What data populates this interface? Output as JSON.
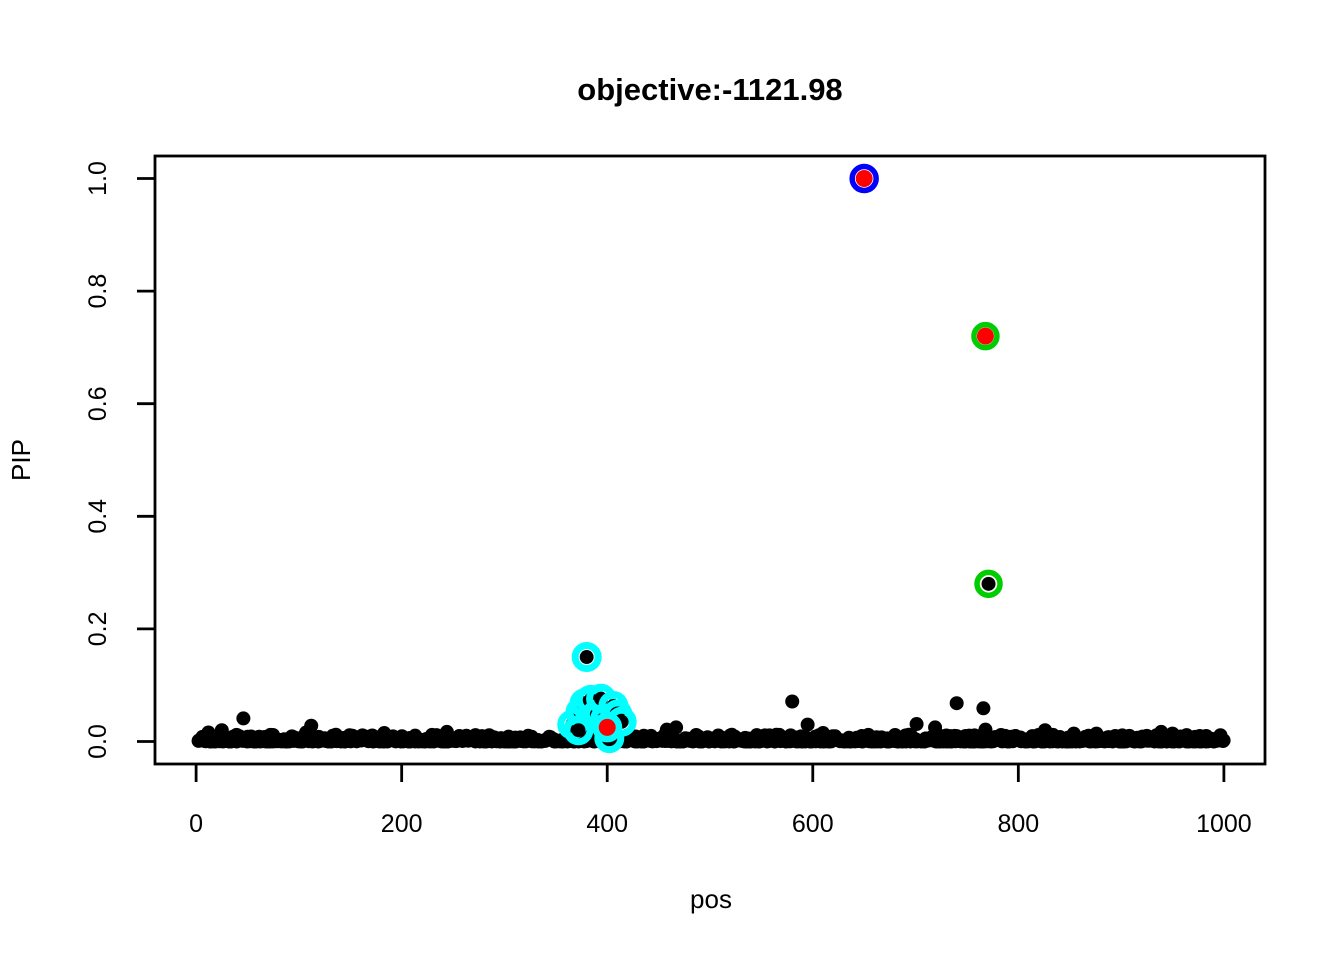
{
  "window": {
    "background": "#ffffff"
  },
  "chart_data": {
    "type": "scatter",
    "title": "objective:-1121.98",
    "xlabel": "pos",
    "ylabel": "PIP",
    "xlim": [
      0,
      1000
    ],
    "ylim": [
      0,
      1
    ],
    "x_ticks": [
      0,
      200,
      400,
      600,
      800,
      1000
    ],
    "y_ticks": [
      "0.0",
      "0.2",
      "0.4",
      "0.6",
      "0.8",
      "1.0"
    ],
    "axis_padding_frac": 0.04,
    "grid": false,
    "legend": "none",
    "colors": {
      "point": "#000000",
      "true_effect_dot": "#FF0000",
      "ring_blue": "#0000FF",
      "ring_green": "#00CD00",
      "ring_cyan": "#00FFFF",
      "box": "#000000"
    },
    "credible_sets": [
      {
        "name": "cs-blue",
        "ring": "ring_blue",
        "ring_radius": 12,
        "ring_stroke": 5.5,
        "points": [
          {
            "pos": 650,
            "pip": 1.0,
            "dot": "red"
          }
        ]
      },
      {
        "name": "cs-green",
        "ring": "ring_green",
        "ring_radius": 11.5,
        "ring_stroke": 5.5,
        "points": [
          {
            "pos": 768,
            "pip": 0.72,
            "dot": "red"
          },
          {
            "pos": 771,
            "pip": 0.28,
            "dot": "black"
          }
        ]
      },
      {
        "name": "cs-cyan",
        "ring": "ring_cyan",
        "ring_radius": 11.5,
        "ring_stroke": 7,
        "points": [
          {
            "pos": 366,
            "pip": 0.03
          },
          {
            "pos": 374,
            "pip": 0.052
          },
          {
            "pos": 378,
            "pip": 0.068
          },
          {
            "pos": 384,
            "pip": 0.074
          },
          {
            "pos": 390,
            "pip": 0.048
          },
          {
            "pos": 394,
            "pip": 0.076
          },
          {
            "pos": 398,
            "pip": 0.04
          },
          {
            "pos": 402,
            "pip": 0.006
          },
          {
            "pos": 406,
            "pip": 0.063
          },
          {
            "pos": 410,
            "pip": 0.048
          },
          {
            "pos": 414,
            "pip": 0.035
          },
          {
            "pos": 372,
            "pip": 0.02,
            "dot": "black"
          },
          {
            "pos": 380,
            "pip": 0.15,
            "dot": "black"
          },
          {
            "pos": 400,
            "pip": 0.025,
            "dot": "red"
          }
        ]
      }
    ],
    "notable_points": [
      [
        12,
        0.016
      ],
      [
        25,
        0.02
      ],
      [
        46,
        0.041
      ],
      [
        107,
        0.016
      ],
      [
        112,
        0.028
      ],
      [
        136,
        0.012
      ],
      [
        183,
        0.015
      ],
      [
        244,
        0.017
      ],
      [
        458,
        0.021
      ],
      [
        467,
        0.025
      ],
      [
        580,
        0.071
      ],
      [
        595,
        0.03
      ],
      [
        610,
        0.015
      ],
      [
        701,
        0.031
      ],
      [
        719,
        0.025
      ],
      [
        740,
        0.068
      ],
      [
        766,
        0.059
      ],
      [
        768,
        0.021
      ],
      [
        826,
        0.02
      ],
      [
        854,
        0.014
      ],
      [
        876,
        0.014
      ],
      [
        939,
        0.017
      ],
      [
        950,
        0.014
      ]
    ],
    "baseline_band": {
      "description": "dense row of black points at PIP near 0 spanning full pos range",
      "count": 950,
      "pos_min": 2,
      "pos_max": 999,
      "pip_max": 0.012,
      "exponent": 3,
      "seed": 42
    },
    "point_radius": 7,
    "true_effect_radius": 8.5
  }
}
